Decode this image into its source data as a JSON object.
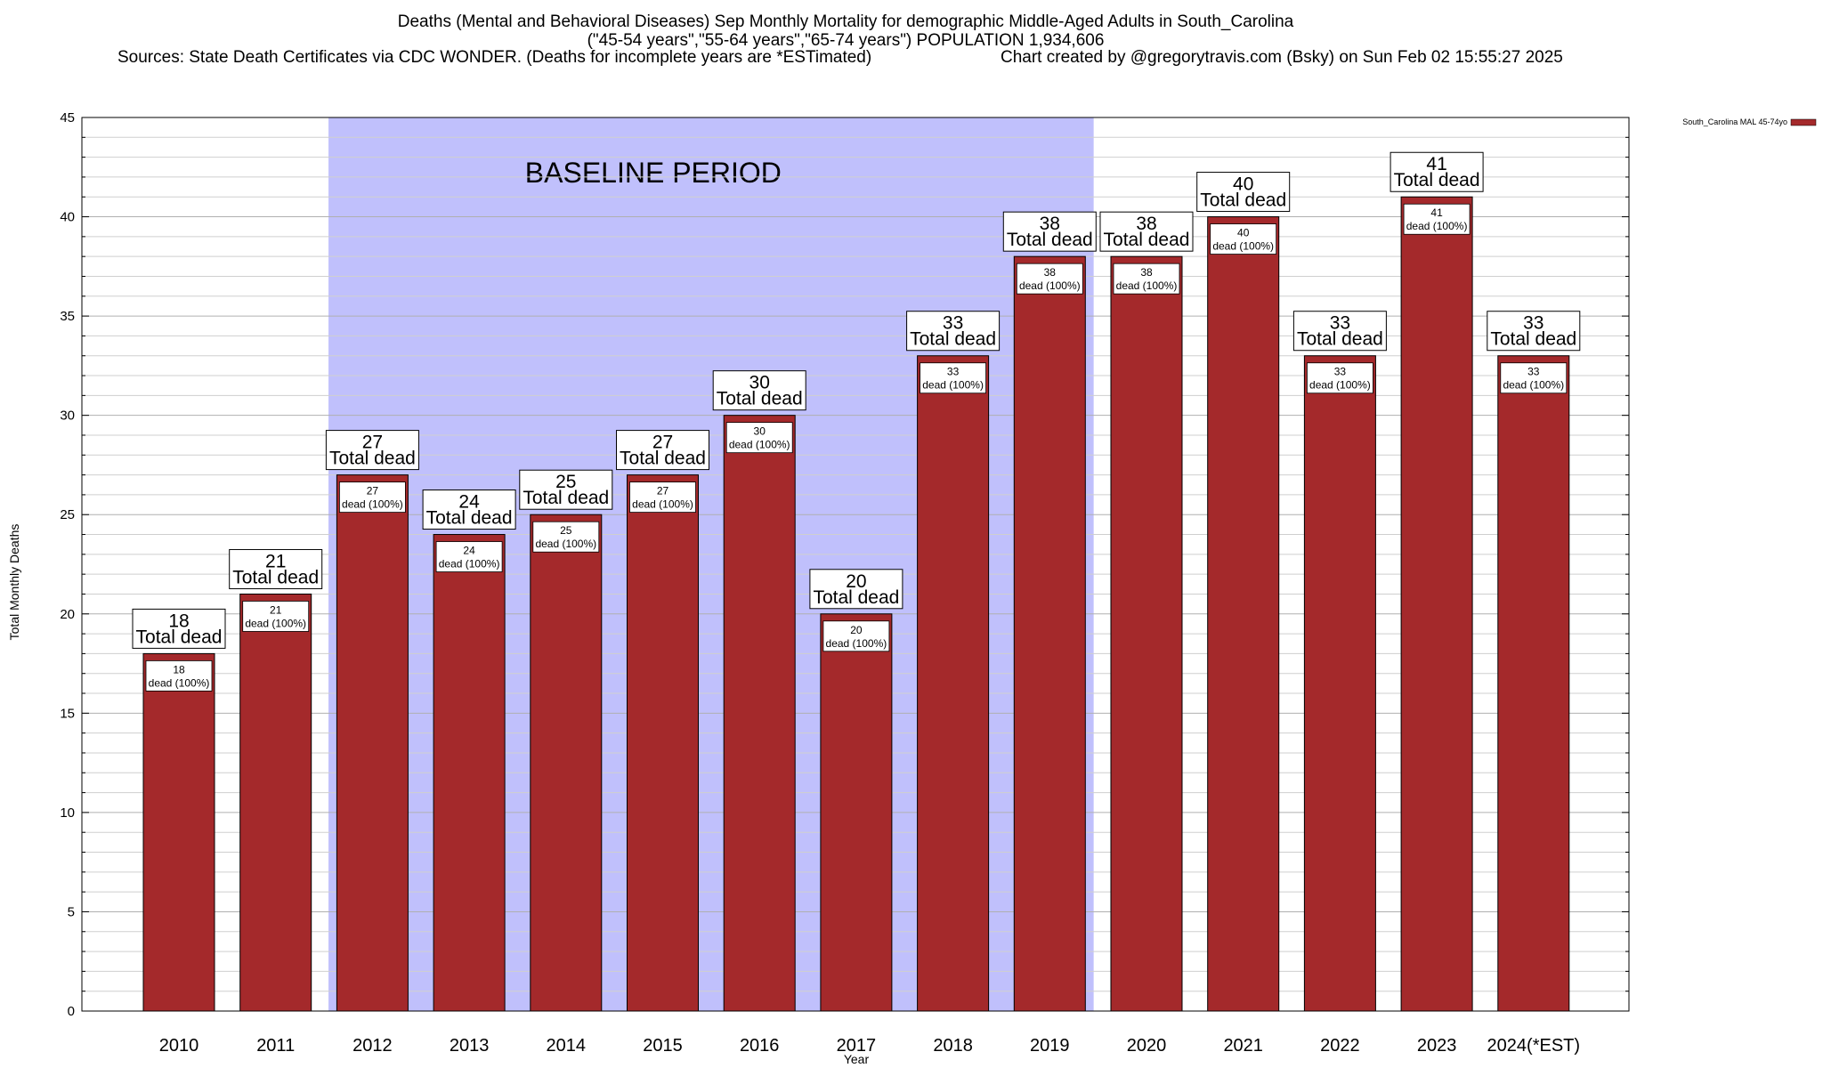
{
  "chart_data": {
    "type": "bar",
    "title": "Deaths (Mental and Behavioral Diseases) Sep Monthly Mortality for demographic Middle-Aged Adults in South_Carolina",
    "subtitle": "(\"45-54 years\",\"55-64 years\",\"65-74 years\") POPULATION 1,934,606",
    "sources": "Sources: State Death Certificates via CDC WONDER. (Deaths for incomplete years are *ESTimated)",
    "credit": "Chart created by @gregorytravis.com (Bsky) on Sun Feb 02 15:55:27 2025",
    "xlabel": "Year",
    "ylabel": "Total Monthly Deaths",
    "ylim": [
      0,
      45
    ],
    "ytick_step": 5,
    "ytick_labels": [
      "0",
      "5",
      "10",
      "15",
      "20",
      "25",
      "30",
      "35",
      "40",
      "45"
    ],
    "grid": true,
    "categories": [
      "2010",
      "2011",
      "2012",
      "2013",
      "2014",
      "2015",
      "2016",
      "2017",
      "2018",
      "2019",
      "2020",
      "2021",
      "2022",
      "2023",
      "2024(*EST)"
    ],
    "series": [
      {
        "name": "South_Carolina MAL 45-74yo",
        "color": "#a4292b",
        "values": [
          18,
          21,
          27,
          24,
          25,
          27,
          30,
          20,
          33,
          38,
          38,
          40,
          33,
          41,
          33
        ]
      }
    ],
    "top_labels": [
      "18",
      "21",
      "27",
      "24",
      "25",
      "27",
      "30",
      "20",
      "33",
      "38",
      "38",
      "40",
      "33",
      "41",
      "33"
    ],
    "top_label_suffix": "Total dead",
    "inner_labels": [
      "18",
      "21",
      "27",
      "24",
      "25",
      "27",
      "30",
      "20",
      "33",
      "38",
      "38",
      "40",
      "33",
      "41",
      "33"
    ],
    "inner_label_suffix": "dead (100%)",
    "baseline_region": {
      "label": "BASELINE PERIOD",
      "from_category": "2012",
      "to_category": "2019",
      "color": "#c0c0fc"
    },
    "legend_position": "top-right"
  }
}
